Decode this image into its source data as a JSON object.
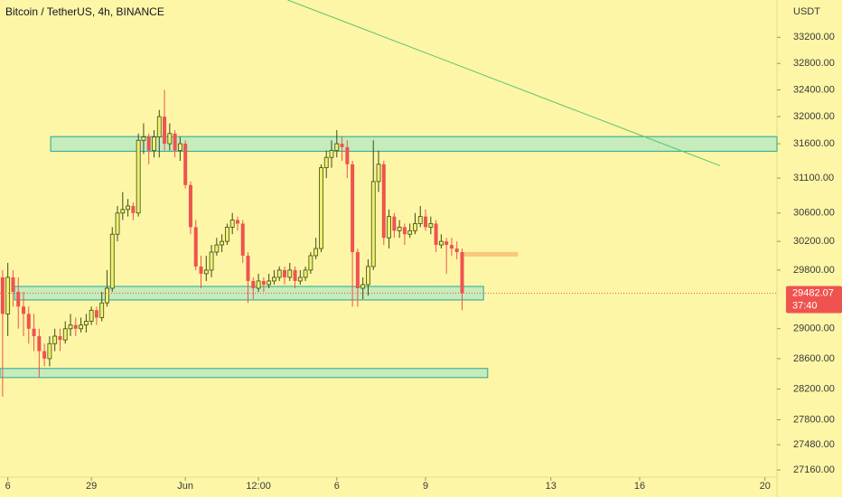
{
  "chart_data": {
    "type": "candlestick",
    "title": "Bitcoin / TetherUS, 4h, BINANCE",
    "y_axis_label": "USDT",
    "log_scale": true,
    "grid": false,
    "up_color": "#eef26e",
    "up_border": "#3f4a17",
    "down_color": "#ef5350",
    "xlim": [
      -0.5,
      148.3
    ],
    "xticks": [
      {
        "value": 1,
        "label": "6"
      },
      {
        "value": 17,
        "label": "29"
      },
      {
        "value": 35,
        "label": "Jun"
      },
      {
        "value": 49,
        "label": "12:00"
      },
      {
        "value": 64,
        "label": "6"
      },
      {
        "value": 81,
        "label": "9"
      },
      {
        "value": 105,
        "label": "13"
      },
      {
        "value": 122,
        "label": "16"
      },
      {
        "value": 146,
        "label": "20"
      }
    ],
    "ylim": [
      27070,
      33780
    ],
    "yticks": [
      {
        "value": 33200,
        "label": "33200.00"
      },
      {
        "value": 32800,
        "label": "32800.00"
      },
      {
        "value": 32400,
        "label": "32400.00"
      },
      {
        "value": 32000,
        "label": "32000.00"
      },
      {
        "value": 31600,
        "label": "31600.00"
      },
      {
        "value": 31100,
        "label": "31100.00"
      },
      {
        "value": 30600,
        "label": "30600.00"
      },
      {
        "value": 30200,
        "label": "30200.00"
      },
      {
        "value": 29800,
        "label": "29800.00"
      },
      {
        "value": 29000,
        "label": "29000.00"
      },
      {
        "value": 28600,
        "label": "28600.00"
      },
      {
        "value": 28200,
        "label": "28200.00"
      },
      {
        "value": 27800,
        "label": "27800.00"
      },
      {
        "value": 27480,
        "label": "27480.00"
      },
      {
        "value": 27160,
        "label": "27160.00"
      }
    ],
    "open": [
      29700,
      29200,
      29700,
      29500,
      29300,
      29200,
      29000,
      28900,
      28700,
      28600,
      28800,
      28900,
      28850,
      29000,
      29050,
      29000,
      29050,
      29100,
      29250,
      29150,
      29350,
      29550,
      30300,
      30600,
      30650,
      30700,
      30600,
      31650,
      31700,
      31500,
      31700,
      32000,
      31600,
      31750,
      31500,
      31600,
      31000,
      30400,
      29850,
      29750,
      29800,
      30050,
      30150,
      30200,
      30400,
      30500,
      30450,
      30000,
      29650,
      29550,
      29650,
      29600,
      29650,
      29700,
      29800,
      29700,
      29800,
      29650,
      29700,
      29800,
      30000,
      30100,
      31250,
      31400,
      31500,
      31600,
      31550,
      31300,
      30050,
      29550,
      29600,
      29850,
      31050,
      31300,
      30250,
      30550,
      30350,
      30400,
      30300,
      30350,
      30450,
      30550,
      30400,
      30450,
      30150,
      30200,
      30150,
      30100,
      30050
    ],
    "high": [
      29800,
      29900,
      29800,
      29700,
      29500,
      29300,
      29200,
      29000,
      28800,
      28900,
      29000,
      29000,
      29100,
      29200,
      29150,
      29150,
      29200,
      29300,
      29300,
      29500,
      29800,
      30400,
      30700,
      30900,
      30800,
      30750,
      31750,
      31900,
      31750,
      31800,
      32100,
      32400,
      31900,
      31800,
      31700,
      31650,
      31050,
      30500,
      30000,
      30000,
      30150,
      30250,
      30300,
      30450,
      30600,
      30550,
      30500,
      30050,
      29700,
      29750,
      29700,
      29750,
      29800,
      29850,
      29850,
      29900,
      29850,
      29800,
      29850,
      30050,
      30250,
      31300,
      31500,
      31650,
      31800,
      31700,
      31650,
      31350,
      30100,
      29700,
      29950,
      31650,
      31500,
      31350,
      30650,
      30600,
      30500,
      30450,
      30450,
      30600,
      30700,
      30650,
      30550,
      30500,
      30300,
      30250,
      30250,
      30200,
      30100
    ],
    "low": [
      28100,
      28900,
      29300,
      29000,
      28900,
      28800,
      28700,
      28350,
      28500,
      28500,
      28700,
      28700,
      28800,
      28900,
      28900,
      28950,
      28950,
      29050,
      29050,
      29100,
      29300,
      29500,
      30200,
      30500,
      30550,
      30500,
      30550,
      31450,
      31300,
      31400,
      31400,
      31500,
      31500,
      31400,
      31350,
      30950,
      30300,
      29800,
      29550,
      29650,
      29700,
      30000,
      30050,
      30150,
      30300,
      30350,
      29900,
      29350,
      29400,
      29500,
      29500,
      29550,
      29600,
      29650,
      29600,
      29650,
      29550,
      29600,
      29650,
      29750,
      29950,
      30050,
      31100,
      31250,
      31400,
      31350,
      31100,
      29300,
      29300,
      29400,
      29450,
      29800,
      30900,
      30150,
      30100,
      30250,
      30250,
      30150,
      30250,
      30300,
      30400,
      30350,
      30300,
      30050,
      30100,
      29750,
      30000,
      29950,
      29250
    ],
    "close": [
      29200,
      29700,
      29500,
      29300,
      29200,
      29000,
      28900,
      28700,
      28600,
      28800,
      28900,
      28850,
      29000,
      29050,
      29000,
      29050,
      29100,
      29250,
      29150,
      29350,
      29550,
      30300,
      30600,
      30650,
      30700,
      30600,
      31650,
      31700,
      31500,
      31700,
      32000,
      31600,
      31750,
      31500,
      31600,
      31000,
      30400,
      29850,
      29750,
      29800,
      30050,
      30150,
      30200,
      30400,
      30500,
      30450,
      30000,
      29650,
      29550,
      29650,
      29600,
      29650,
      29700,
      29800,
      29700,
      29800,
      29650,
      29700,
      29800,
      30000,
      30100,
      31250,
      31400,
      31500,
      31600,
      31550,
      31300,
      30050,
      29550,
      29600,
      29850,
      31050,
      31300,
      30250,
      30550,
      30350,
      30400,
      30300,
      30350,
      30450,
      30550,
      30400,
      30450,
      30150,
      30200,
      30150,
      30100,
      30050,
      29482.07
    ],
    "countdown": "37:40",
    "zones": [
      {
        "x": [
          9.2,
          148.3
        ],
        "y": [
          31490,
          31705
        ]
      },
      {
        "x": [
          2.3,
          92.1
        ],
        "y": [
          29390,
          29575
        ]
      },
      {
        "x": [
          -0.5,
          92.9
        ],
        "y": [
          28350,
          28470
        ]
      }
    ],
    "trend_line": {
      "x": [
        54.6,
        137.4
      ],
      "y": [
        33780,
        31280
      ],
      "color": "#5cc46e"
    },
    "target_line": {
      "x": [
        88.3,
        98.7
      ],
      "y": 30020,
      "color": "#f7c97a"
    }
  }
}
